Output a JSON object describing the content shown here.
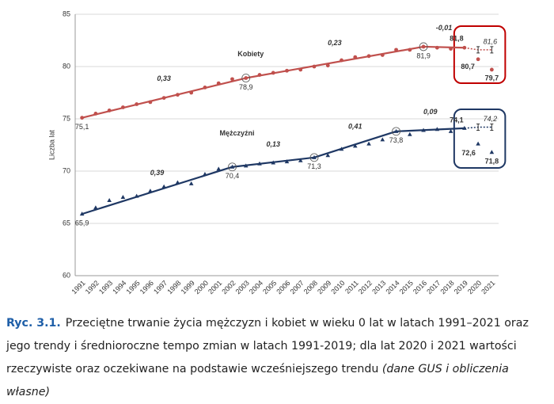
{
  "chart_data": {
    "type": "line",
    "y_label": "Liczba lat",
    "categories": [
      "1991",
      "1992",
      "1993",
      "1994",
      "1995",
      "1996",
      "1997",
      "1998",
      "1999",
      "2000",
      "2001",
      "2002",
      "2003",
      "2004",
      "2005",
      "2006",
      "2007",
      "2008",
      "2009",
      "2010",
      "2011",
      "2012",
      "2013",
      "2014",
      "2015",
      "2016",
      "2017",
      "2018",
      "2019",
      "2020",
      "2021"
    ],
    "ylim": [
      60,
      85
    ],
    "yticks": [
      60,
      65,
      70,
      75,
      80,
      85
    ],
    "grid": true,
    "series": [
      {
        "name": "Kobiety",
        "color": "#b23a3a",
        "line_color": "#c0504d",
        "marker": "circle",
        "values": [
          75.1,
          75.5,
          75.8,
          76.1,
          76.4,
          76.6,
          77.0,
          77.3,
          77.5,
          78.0,
          78.4,
          78.8,
          78.9,
          79.2,
          79.4,
          79.6,
          79.7,
          80.0,
          80.1,
          80.6,
          80.9,
          81.0,
          81.1,
          81.6,
          81.6,
          81.9,
          81.8,
          81.7,
          81.8,
          80.7,
          79.7
        ],
        "value_labels": [
          "75,1",
          null,
          null,
          null,
          null,
          null,
          null,
          null,
          null,
          null,
          null,
          null,
          "78,9",
          null,
          null,
          null,
          null,
          null,
          null,
          null,
          null,
          null,
          null,
          null,
          null,
          "81,9",
          null,
          null,
          "81,8",
          "80,7",
          "79,7"
        ],
        "expected_values": [
          null,
          null,
          null,
          null,
          null,
          null,
          null,
          null,
          null,
          null,
          null,
          null,
          null,
          null,
          null,
          null,
          null,
          null,
          null,
          null,
          null,
          null,
          null,
          null,
          null,
          null,
          null,
          null,
          81.8,
          81.6,
          81.6
        ],
        "expected_labels": [
          null,
          null,
          null,
          null,
          null,
          null,
          null,
          null,
          null,
          null,
          null,
          null,
          null,
          null,
          null,
          null,
          null,
          null,
          null,
          null,
          null,
          null,
          null,
          null,
          null,
          null,
          null,
          null,
          null,
          null,
          "81,6"
        ],
        "trends": [
          {
            "from": "1991",
            "to": "2003",
            "label": "0,33"
          },
          {
            "from": "2003",
            "to": "2016",
            "label": "0,23"
          },
          {
            "from": "2016",
            "to": "2019",
            "label": "-0,01"
          }
        ]
      },
      {
        "name": "Mężczyźni",
        "color": "#1f3864",
        "line_color": "#1f3864",
        "marker": "triangle",
        "values": [
          65.9,
          66.5,
          67.2,
          67.5,
          67.6,
          68.1,
          68.5,
          68.9,
          68.8,
          69.7,
          70.2,
          70.4,
          70.5,
          70.7,
          70.8,
          70.9,
          71.0,
          71.3,
          71.5,
          72.1,
          72.4,
          72.6,
          73.0,
          73.8,
          73.5,
          73.9,
          74.0,
          73.8,
          74.1,
          72.6,
          71.8
        ],
        "value_labels": [
          "65,9",
          null,
          null,
          null,
          null,
          null,
          null,
          null,
          null,
          null,
          null,
          "70,4",
          null,
          null,
          null,
          null,
          null,
          "71,3",
          null,
          null,
          null,
          null,
          null,
          "73,8",
          null,
          null,
          null,
          null,
          "74,1",
          "72,6",
          "71,8"
        ],
        "expected_values": [
          null,
          null,
          null,
          null,
          null,
          null,
          null,
          null,
          null,
          null,
          null,
          null,
          null,
          null,
          null,
          null,
          null,
          null,
          null,
          null,
          null,
          null,
          null,
          null,
          null,
          null,
          null,
          null,
          74.1,
          74.2,
          74.2
        ],
        "expected_labels": [
          null,
          null,
          null,
          null,
          null,
          null,
          null,
          null,
          null,
          null,
          null,
          null,
          null,
          null,
          null,
          null,
          null,
          null,
          null,
          null,
          null,
          null,
          null,
          null,
          null,
          null,
          null,
          null,
          null,
          null,
          "74,2"
        ],
        "trends": [
          {
            "from": "1991",
            "to": "2002",
            "label": "0,39"
          },
          {
            "from": "2002",
            "to": "2008",
            "label": "0,13"
          },
          {
            "from": "2008",
            "to": "2014",
            "label": "0,41"
          },
          {
            "from": "2014",
            "to": "2019",
            "label": "0,09"
          }
        ]
      }
    ]
  },
  "caption": {
    "label": "Ryc. 3.1.",
    "text": "Przeciętne trwanie życia mężczyzn i kobiet w wieku 0 lat w latach 1991–2021 oraz jego trendy i średnioroczne tempo zmian w latach 1991-2019; dla lat 2020 i 2021 wartości rzeczywiste oraz oczekiwane na podstawie wcześniejszego trendu",
    "source": "(dane GUS i obliczenia własne)"
  }
}
